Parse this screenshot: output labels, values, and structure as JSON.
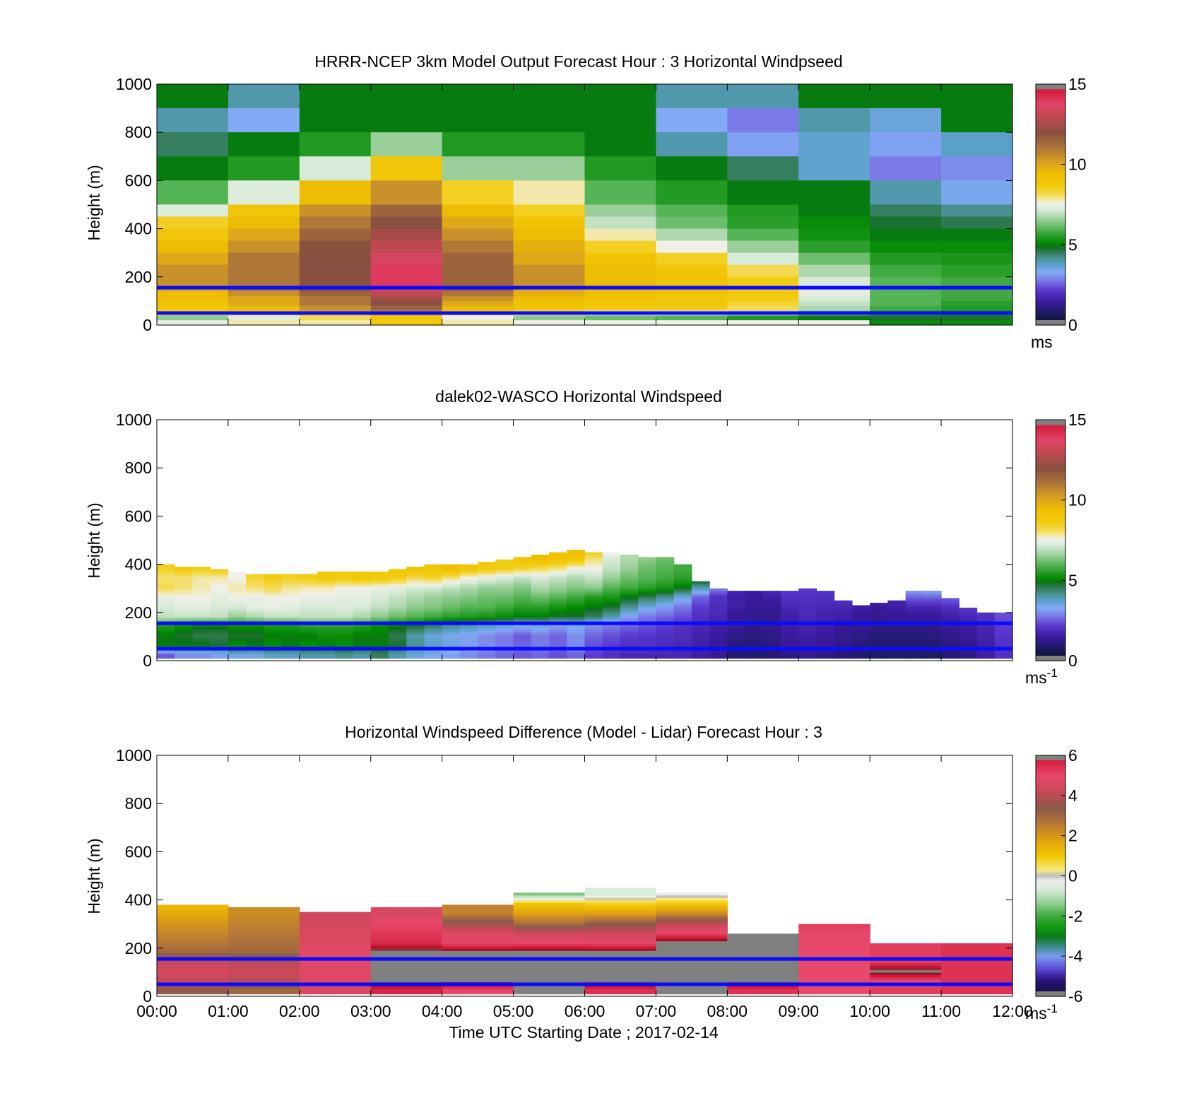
{
  "chart_data": [
    {
      "type": "heatmap",
      "title": "HRRR-NCEP 3km Model Output   Forecast Hour : 3 Horizontal Windpseed",
      "xlabel": "",
      "ylabel": "Height (m)",
      "xlim": [
        0,
        12
      ],
      "ylim": [
        0,
        1000
      ],
      "yticks": [
        "0",
        "200",
        "400",
        "600",
        "800",
        "1000"
      ],
      "xticklabels": [],
      "colorbar": {
        "min": 0,
        "max": 15,
        "ticks": [
          "0",
          "5",
          "10",
          "15"
        ],
        "unit": "ms",
        "unit_sup": ""
      },
      "reference_lines_m": [
        50,
        155
      ],
      "reference_line_color": "#0a0aff",
      "row_tops_m": [
        1000,
        900,
        800,
        700,
        600,
        500,
        450,
        400,
        350,
        300,
        250,
        200,
        160,
        140,
        120,
        100,
        80,
        60,
        40,
        20
      ],
      "values": [
        [
          5.0,
          4.0,
          5.0,
          5.0,
          5.0,
          5.0,
          5.0,
          4.0,
          4.0,
          5.0,
          5.0,
          5.0
        ],
        [
          4.0,
          3.3,
          5.0,
          5.0,
          5.0,
          5.0,
          5.0,
          3.3,
          2.8,
          4.0,
          3.6,
          5.0
        ],
        [
          4.5,
          5.0,
          5.5,
          6.6,
          5.5,
          5.5,
          5.0,
          4.0,
          3.2,
          3.7,
          3.2,
          3.8
        ],
        [
          5.0,
          5.5,
          7.2,
          9.0,
          6.6,
          6.6,
          5.5,
          5.0,
          4.5,
          3.7,
          2.8,
          3.0
        ],
        [
          6.0,
          7.3,
          9.5,
          10.5,
          8.5,
          7.8,
          6.0,
          5.5,
          5.0,
          5.0,
          4.0,
          3.4
        ],
        [
          7.3,
          9.0,
          10.5,
          11.5,
          9.5,
          8.5,
          6.6,
          6.0,
          5.5,
          5.0,
          4.5,
          4.2
        ],
        [
          8.5,
          9.5,
          11.0,
          12.0,
          10.0,
          9.2,
          7.0,
          6.2,
          5.6,
          5.2,
          4.8,
          4.6
        ],
        [
          9.0,
          10.0,
          11.5,
          12.5,
          10.5,
          9.5,
          7.8,
          6.8,
          6.0,
          5.3,
          5.0,
          5.0
        ],
        [
          9.5,
          10.5,
          12.0,
          13.0,
          11.0,
          9.8,
          8.5,
          7.6,
          6.6,
          5.6,
          5.2,
          5.2
        ],
        [
          10.0,
          11.0,
          12.0,
          13.5,
          11.5,
          10.0,
          9.2,
          8.5,
          7.2,
          6.2,
          5.5,
          5.4
        ],
        [
          10.5,
          11.0,
          12.0,
          14.0,
          11.5,
          10.5,
          9.5,
          9.0,
          8.2,
          6.8,
          5.8,
          5.6
        ],
        [
          10.5,
          11.0,
          12.0,
          14.0,
          11.5,
          10.5,
          9.5,
          9.2,
          8.6,
          7.2,
          6.0,
          5.8
        ],
        [
          10.0,
          11.0,
          12.0,
          13.5,
          11.5,
          10.0,
          9.5,
          9.3,
          8.8,
          7.4,
          6.0,
          5.8
        ],
        [
          9.5,
          10.5,
          11.5,
          13.0,
          11.0,
          9.8,
          9.4,
          9.2,
          8.8,
          7.4,
          6.0,
          5.8
        ],
        [
          9.5,
          10.0,
          11.0,
          12.5,
          10.5,
          9.5,
          9.3,
          9.0,
          8.6,
          7.2,
          6.0,
          5.8
        ],
        [
          9.2,
          10.0,
          11.0,
          12.0,
          10.0,
          9.3,
          9.0,
          9.0,
          8.4,
          7.0,
          6.0,
          5.6
        ],
        [
          9.0,
          9.5,
          10.5,
          11.5,
          9.5,
          9.0,
          8.8,
          8.8,
          8.2,
          6.8,
          5.8,
          5.5
        ],
        [
          8.5,
          9.0,
          10.0,
          10.5,
          9.0,
          8.0,
          7.5,
          7.5,
          7.0,
          6.3,
          5.5,
          5.3
        ],
        [
          6.5,
          7.3,
          8.2,
          9.0,
          7.6,
          6.5,
          6.2,
          6.0,
          5.5,
          5.0,
          4.8,
          4.8
        ],
        [
          7.4,
          7.8,
          7.8,
          8.8,
          7.8,
          7.6,
          7.6,
          7.6,
          7.6,
          7.6,
          5.2,
          5.2
        ]
      ]
    },
    {
      "type": "heatmap",
      "title": "dalek02-WASCO  Horizontal Windspeed",
      "xlabel": "",
      "ylabel": "Height (m)",
      "xlim": [
        0,
        12
      ],
      "ylim": [
        0,
        1000
      ],
      "yticks": [
        "0",
        "200",
        "400",
        "600",
        "800",
        "1000"
      ],
      "xticklabels": [],
      "colorbar": {
        "min": 0,
        "max": 15,
        "ticks": [
          "0",
          "5",
          "10",
          "15"
        ],
        "unit": "ms",
        "unit_sup": "-1"
      },
      "reference_lines_m": [
        50,
        155
      ],
      "reference_line_color": "#0a0aff",
      "profile_times_h": [
        0.0,
        0.25,
        0.5,
        0.75,
        1.0,
        1.25,
        1.5,
        1.75,
        2.0,
        2.25,
        2.5,
        2.75,
        3.0,
        3.25,
        3.5,
        3.75,
        4.0,
        4.25,
        4.5,
        4.75,
        5.0,
        5.25,
        5.5,
        5.75,
        6.0,
        6.25,
        6.5,
        6.75,
        7.0,
        7.25,
        7.5,
        7.75,
        8.0,
        8.25,
        8.5,
        8.75,
        9.0,
        9.25,
        9.5,
        9.75,
        10.0,
        10.25,
        10.5,
        10.75,
        11.0,
        11.25,
        11.5,
        11.75
      ],
      "profile_tops_m": [
        395,
        385,
        385,
        380,
        365,
        355,
        355,
        355,
        355,
        365,
        365,
        365,
        370,
        380,
        390,
        395,
        400,
        400,
        405,
        420,
        430,
        440,
        450,
        460,
        450,
        450,
        440,
        430,
        425,
        400,
        330,
        300,
        290,
        285,
        285,
        290,
        295,
        285,
        250,
        225,
        240,
        245,
        290,
        290,
        260,
        220,
        200,
        200
      ],
      "sample_heights_m": [
        20,
        60,
        100,
        140,
        180,
        220,
        260,
        300,
        340,
        380,
        420,
        460
      ],
      "profile_speeds": [
        [
          2.5,
          5.0,
          5.0,
          5.5,
          7.0,
          7.2,
          7.5,
          8.2,
          8.0,
          8.5
        ],
        [
          3.0,
          5.0,
          4.8,
          5.2,
          7.0,
          7.4,
          7.6,
          8.0,
          8.0,
          8.8
        ],
        [
          3.0,
          5.0,
          4.6,
          5.0,
          7.0,
          7.4,
          7.6,
          7.8,
          7.8,
          8.6
        ],
        [
          3.2,
          4.8,
          4.6,
          5.0,
          7.0,
          7.2,
          7.4,
          7.6,
          7.8,
          8.8
        ],
        [
          3.5,
          5.2,
          4.8,
          5.2,
          6.6,
          7.2,
          7.6,
          7.8,
          7.6
        ],
        [
          3.5,
          5.0,
          4.8,
          5.2,
          6.8,
          7.4,
          7.5,
          8.0,
          8.4
        ],
        [
          3.8,
          5.2,
          5.0,
          5.4,
          7.0,
          7.5,
          7.6,
          8.2,
          8.6
        ],
        [
          3.8,
          5.0,
          5.0,
          5.4,
          7.0,
          7.4,
          7.6,
          7.9,
          8.5
        ],
        [
          4.0,
          5.2,
          5.0,
          5.6,
          7.0,
          7.2,
          7.5,
          7.8,
          8.6
        ],
        [
          4.0,
          5.0,
          5.2,
          5.6,
          7.0,
          7.2,
          7.5,
          7.8,
          8.8
        ],
        [
          4.2,
          5.2,
          5.2,
          5.6,
          7.0,
          7.3,
          7.4,
          7.6,
          8.7
        ],
        [
          4.0,
          5.0,
          5.0,
          5.5,
          6.8,
          7.2,
          7.4,
          7.6,
          8.9
        ],
        [
          4.5,
          5.0,
          5.0,
          5.2,
          6.5,
          7.0,
          7.2,
          7.5,
          8.8
        ],
        [
          4.0,
          4.8,
          4.6,
          5.0,
          6.2,
          6.8,
          7.0,
          7.4,
          8.6,
          9.0
        ],
        [
          3.6,
          4.2,
          4.0,
          4.8,
          6.0,
          6.5,
          6.8,
          7.2,
          8.2,
          9.2
        ],
        [
          3.4,
          3.8,
          3.6,
          4.5,
          5.8,
          6.4,
          6.6,
          7.2,
          8.4,
          9.0
        ],
        [
          3.2,
          3.6,
          3.4,
          4.2,
          5.6,
          6.2,
          6.5,
          7.0,
          8.0,
          9.4
        ],
        [
          3.0,
          3.2,
          3.2,
          4.0,
          5.5,
          6.0,
          6.4,
          6.8,
          7.6,
          9.0
        ],
        [
          2.8,
          3.0,
          3.0,
          3.8,
          5.4,
          6.0,
          6.2,
          6.6,
          7.4,
          8.8
        ],
        [
          2.6,
          2.8,
          2.8,
          3.6,
          5.2,
          5.8,
          6.2,
          6.6,
          7.2,
          8.6
        ],
        [
          2.5,
          2.6,
          2.5,
          3.4,
          5.0,
          5.6,
          6.0,
          6.4,
          7.0,
          8.4,
          9.2
        ],
        [
          2.6,
          2.8,
          2.8,
          3.5,
          5.0,
          5.6,
          6.2,
          6.8,
          7.2,
          8.2,
          9.4
        ],
        [
          2.4,
          2.6,
          2.6,
          3.2,
          4.8,
          5.4,
          6.0,
          6.6,
          7.0,
          8.0,
          9.2
        ],
        [
          2.6,
          3.0,
          3.0,
          3.4,
          4.8,
          5.2,
          5.8,
          6.4,
          6.8,
          7.6,
          9.0,
          9.5
        ],
        [
          2.2,
          2.4,
          2.6,
          3.0,
          4.5,
          5.0,
          5.5,
          6.5,
          7.0,
          7.6,
          8.0,
          9.0
        ],
        [
          2.0,
          2.2,
          2.4,
          2.8,
          4.0,
          4.8,
          5.4,
          6.0,
          6.6,
          7.0,
          7.2,
          8.0
        ],
        [
          1.8,
          2.0,
          2.2,
          2.6,
          3.2,
          4.2,
          5.0,
          5.8,
          6.2,
          6.6,
          6.8
        ],
        [
          1.8,
          2.0,
          2.1,
          2.4,
          2.8,
          3.6,
          4.6,
          5.6,
          6.0,
          6.2,
          6.5
        ],
        [
          1.8,
          1.9,
          2.0,
          2.2,
          2.6,
          3.2,
          4.2,
          5.4,
          5.8,
          6.0,
          6.2
        ],
        [
          1.8,
          1.8,
          1.9,
          2.0,
          2.4,
          2.8,
          3.6,
          5.0,
          5.6,
          5.8
        ],
        [
          1.6,
          1.6,
          1.7,
          1.8,
          2.0,
          2.2,
          2.6,
          4.0,
          5.4
        ],
        [
          1.4,
          1.4,
          1.5,
          1.6,
          1.8,
          1.9,
          2.0,
          3.0
        ],
        [
          1.0,
          1.0,
          1.2,
          1.4,
          1.4,
          1.6,
          1.6,
          1.8
        ],
        [
          0.9,
          1.0,
          1.1,
          1.2,
          1.3,
          1.4,
          1.5,
          1.6
        ],
        [
          1.0,
          1.1,
          1.2,
          1.3,
          1.3,
          1.4,
          1.6,
          1.9
        ],
        [
          1.2,
          1.4,
          1.5,
          1.6,
          1.6,
          1.8,
          2.0,
          2.2
        ],
        [
          1.3,
          1.5,
          1.6,
          1.7,
          1.8,
          1.9,
          2.0,
          2.2
        ],
        [
          1.2,
          1.4,
          1.5,
          1.6,
          1.7,
          1.8,
          2.0,
          2.1
        ],
        [
          1.0,
          1.2,
          1.3,
          1.4,
          1.6,
          1.8,
          2.0
        ],
        [
          0.9,
          1.0,
          1.2,
          1.3,
          1.4,
          1.6
        ],
        [
          0.8,
          0.9,
          1.0,
          1.2,
          1.3,
          1.5
        ],
        [
          0.8,
          0.9,
          1.0,
          1.2,
          1.4,
          1.6
        ],
        [
          0.8,
          0.9,
          1.0,
          1.2,
          1.4,
          1.8,
          2.6,
          3.4
        ],
        [
          0.8,
          0.9,
          1.1,
          1.2,
          1.4,
          1.8,
          2.6,
          3.6
        ],
        [
          1.0,
          1.1,
          1.2,
          1.4,
          1.6,
          2.0,
          2.6
        ],
        [
          1.2,
          1.3,
          1.4,
          1.5,
          1.8,
          2.2
        ],
        [
          1.6,
          1.6,
          1.7,
          1.8,
          2.0
        ],
        [
          2.0,
          2.0,
          2.1,
          2.2,
          2.4
        ]
      ]
    },
    {
      "type": "heatmap",
      "title": "Horizontal Windspeed Difference (Model - Lidar) Forecast Hour : 3",
      "xlabel": "Time UTC  Starting Date ; 2017-02-14",
      "ylabel": "Height (m)",
      "xlim": [
        0,
        12
      ],
      "ylim": [
        0,
        1000
      ],
      "yticks": [
        "0",
        "200",
        "400",
        "600",
        "800",
        "1000"
      ],
      "xticklabels": [
        "00:00",
        "01:00",
        "02:00",
        "03:00",
        "04:00",
        "05:00",
        "06:00",
        "07:00",
        "08:00",
        "09:00",
        "10:00",
        "11:00",
        "12:00"
      ],
      "colorbar": {
        "min": -6,
        "max": 6,
        "ticks": [
          "-6",
          "-4",
          "-2",
          "0",
          "2",
          "4",
          "6"
        ],
        "unit": "ms",
        "unit_sup": "-1"
      },
      "reference_lines_m": [
        50,
        155
      ],
      "reference_line_color": "#0a0aff",
      "column_tops_m": [
        380,
        365,
        350,
        365,
        380,
        430,
        450,
        430,
        260,
        300,
        215,
        215
      ],
      "value_heights_m": [
        20,
        60,
        100,
        140,
        180,
        220,
        260,
        300,
        340,
        380,
        420
      ],
      "values": [
        [
          3.5,
          4.2,
          4.5,
          4.2,
          3.0,
          2.6,
          2.3,
          2.0,
          1.6,
          1.2
        ],
        [
          3.0,
          4.0,
          4.3,
          4.0,
          3.0,
          2.8,
          2.6,
          2.4,
          2.2
        ],
        [
          4.6,
          4.8,
          4.8,
          4.8,
          4.8,
          4.7,
          4.6,
          4.5,
          4.4
        ],
        [
          5.6,
          6.6,
          6.6,
          6.6,
          6.6,
          5.5,
          5.3,
          5.0,
          4.6
        ],
        [
          5.0,
          6.6,
          6.6,
          6.6,
          6.6,
          4.9,
          4.6,
          3.6,
          2.4
        ],
        [
          6.6,
          6.6,
          6.6,
          6.6,
          6.6,
          5.0,
          4.3,
          2.8,
          1.8,
          1.0,
          -1.5
        ],
        [
          5.4,
          6.6,
          6.6,
          6.6,
          6.6,
          4.9,
          4.3,
          3.2,
          1.8,
          0.8,
          -0.6
        ],
        [
          6.6,
          6.6,
          6.6,
          6.6,
          6.6,
          6.6,
          5.0,
          4.0,
          2.2,
          1.0,
          -0.3
        ],
        [
          5.4,
          6.6,
          6.6,
          6.6,
          6.6,
          6.6,
          6.6
        ],
        [
          5.0,
          5.0,
          5.0,
          5.0,
          5.0,
          5.0,
          5.0,
          5.3
        ],
        [
          5.2,
          5.0,
          6.6,
          5.2,
          5.2,
          5.2
        ],
        [
          5.4,
          5.4,
          5.4,
          5.4,
          5.4,
          5.4
        ]
      ]
    }
  ]
}
